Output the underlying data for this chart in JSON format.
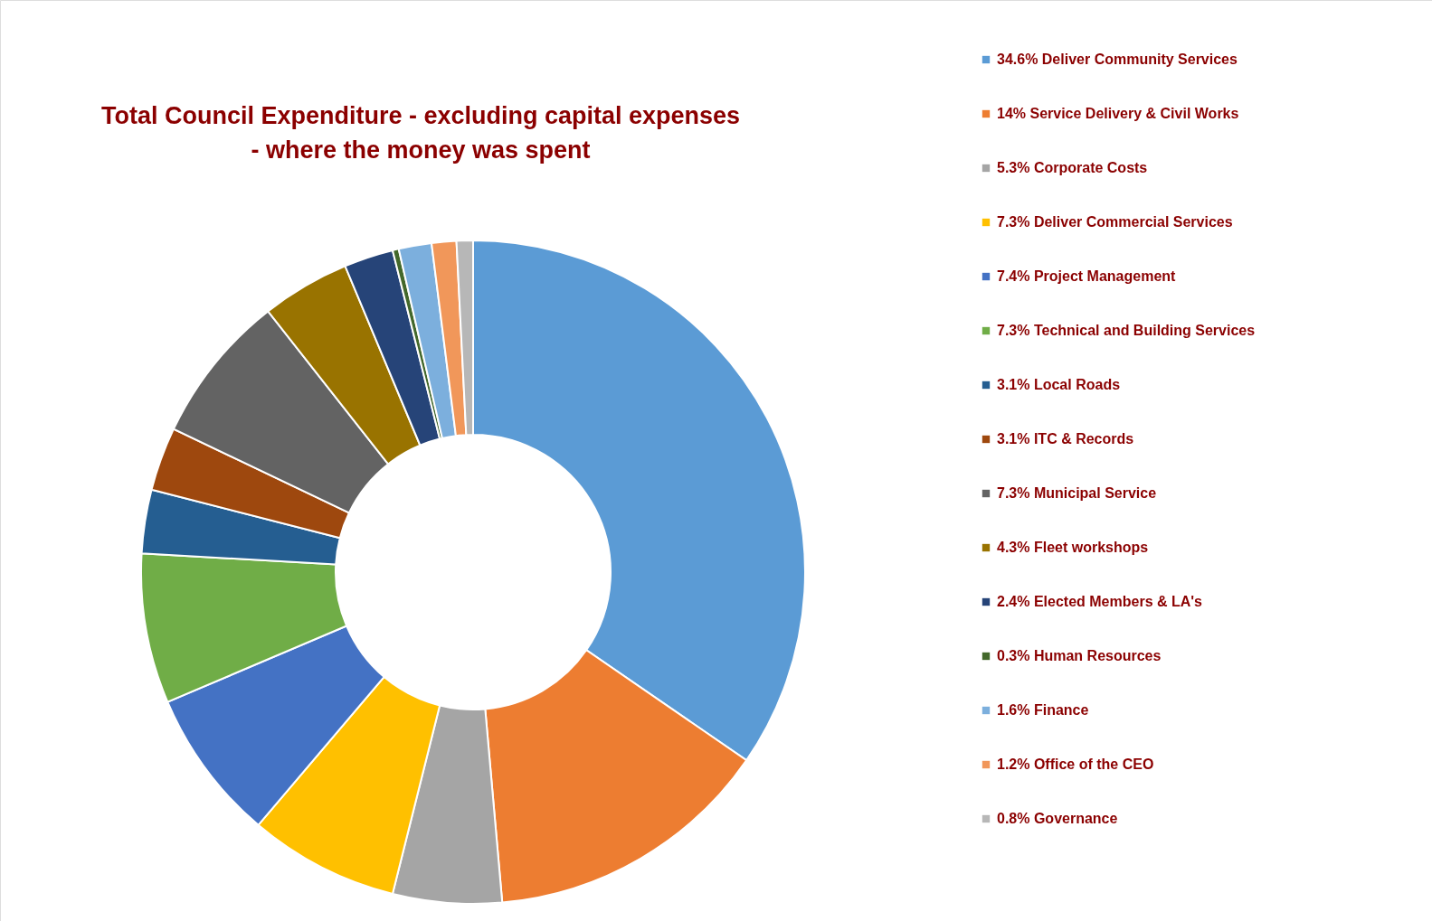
{
  "chart_data": {
    "type": "donut",
    "title": "Total Council Expenditure - excluding capital expenses\n- where the money was spent",
    "categories": [
      "34.6% Deliver Community Services",
      "14% Service Delivery & Civil Works",
      "5.3% Corporate Costs",
      "7.3% Deliver Commercial Services",
      "7.4% Project Management",
      "7.3% Technical and Building Services",
      "3.1% Local Roads",
      "3.1% ITC & Records",
      "7.3% Municipal Service",
      "4.3% Fleet workshops",
      "2.4% Elected Members & LA's",
      "0.3% Human Resources",
      "1.6% Finance",
      "1.2% Office of the CEO",
      "0.8% Governance"
    ],
    "values": [
      34.6,
      14,
      5.3,
      7.3,
      7.4,
      7.3,
      3.1,
      3.1,
      7.3,
      4.3,
      2.4,
      0.3,
      1.6,
      1.2,
      0.8
    ],
    "colors": [
      "#5b9bd5",
      "#ed7d31",
      "#a5a5a5",
      "#ffc000",
      "#4472c4",
      "#70ad47",
      "#255e91",
      "#9e480e",
      "#636363",
      "#997300",
      "#264478",
      "#43682b",
      "#7cafdd",
      "#f1975a",
      "#b7b7b7"
    ],
    "legend": "right"
  }
}
